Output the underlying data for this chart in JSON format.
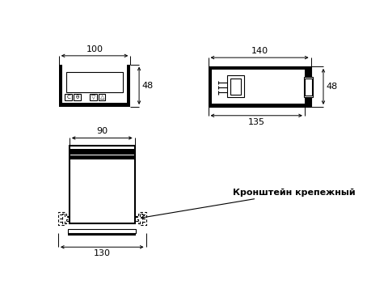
{
  "bg_color": "#ffffff",
  "line_color": "#000000",
  "annotation_text": "Кронштейн крепежный",
  "dim_100": "100",
  "dim_48_left": "48",
  "dim_140": "140",
  "dim_48_right": "48",
  "dim_135": "135",
  "dim_90": "90",
  "dim_130": "130"
}
